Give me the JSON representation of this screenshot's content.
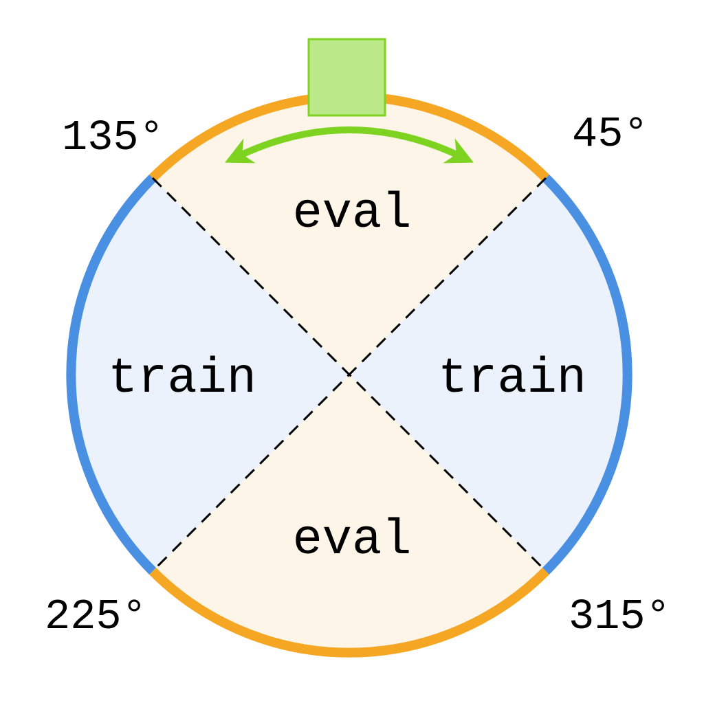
{
  "regions": {
    "top_label": "eval",
    "bottom_label": "eval",
    "left_label": "train",
    "right_label": "train"
  },
  "angles": {
    "a45": "45°",
    "a135": "135°",
    "a225": "225°",
    "a315": "315°"
  },
  "colors": {
    "eval_fill": "#fef5e9",
    "train_fill": "#ebf2fc",
    "eval_arc": "#f5a623",
    "train_arc": "#4a90e2",
    "divider": "#000000",
    "agent_fill": "#bbe98a",
    "agent_stroke": "#7ed321",
    "arrow": "#7ed321"
  }
}
